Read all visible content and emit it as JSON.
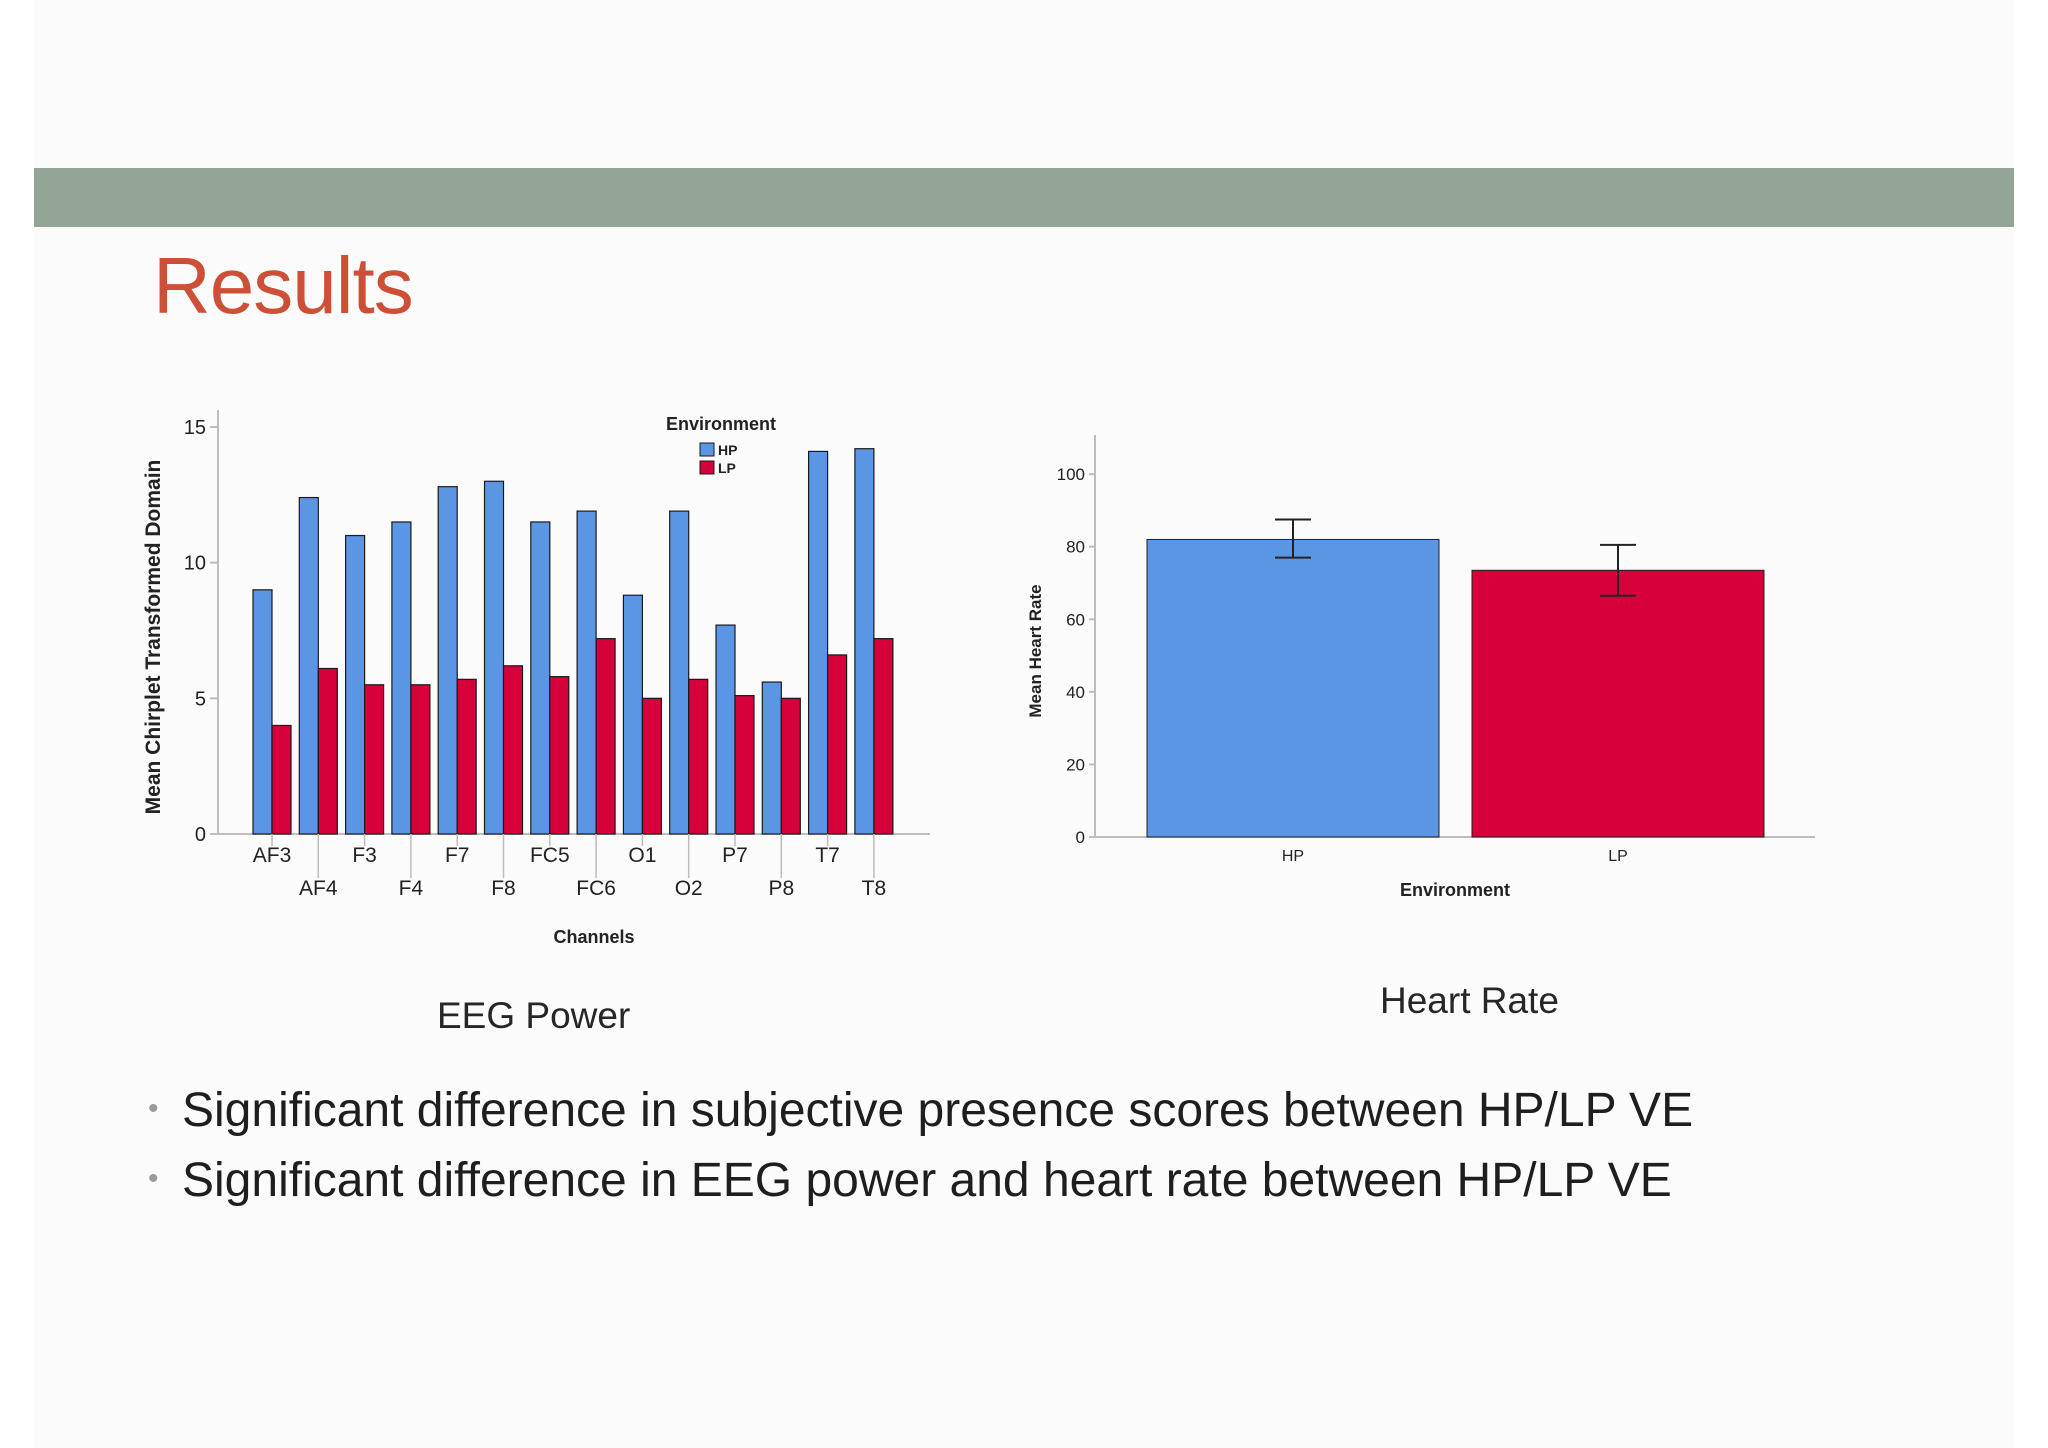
{
  "slide": {
    "title": "Results",
    "captions": {
      "eeg": "EEG Power",
      "heart_rate": "Heart Rate"
    },
    "bullets": [
      "Significant difference in subjective presence scores between HP/LP VE",
      "Significant difference in EEG power and heart rate between HP/LP VE"
    ],
    "colors": {
      "header_bar": "#93a597",
      "title": "#cd5036",
      "hp": "#5b96e4",
      "lp": "#d6003a"
    }
  },
  "chart_data": [
    {
      "type": "bar",
      "title": "",
      "xlabel": "Channels",
      "ylabel": "Mean Chirplet Transformed Domain",
      "ylim": [
        0,
        15
      ],
      "yticks": [
        0,
        5,
        10,
        15
      ],
      "legend": {
        "title": "Environment",
        "placement": "top-right"
      },
      "categories": [
        "AF3",
        "AF4",
        "F3",
        "F4",
        "F7",
        "F8",
        "FC5",
        "FC6",
        "O1",
        "O2",
        "P7",
        "P8",
        "T7",
        "T8"
      ],
      "series": [
        {
          "name": "HP",
          "color": "#5b96e4",
          "values": [
            9.0,
            12.4,
            11.0,
            11.5,
            12.8,
            13.0,
            11.5,
            11.9,
            8.8,
            11.9,
            7.7,
            5.6,
            14.1,
            14.2
          ]
        },
        {
          "name": "LP",
          "color": "#d6003a",
          "values": [
            4.0,
            6.1,
            5.5,
            5.5,
            5.7,
            6.2,
            5.8,
            7.2,
            5.0,
            5.7,
            5.1,
            5.0,
            6.6,
            7.2
          ]
        }
      ]
    },
    {
      "type": "bar",
      "title": "",
      "xlabel": "Environment",
      "ylabel": "Mean Heart Rate",
      "ylim": [
        0,
        105
      ],
      "yticks": [
        0,
        20,
        40,
        60,
        80,
        100
      ],
      "categories": [
        "HP",
        "LP"
      ],
      "values": [
        82,
        73.5
      ],
      "colors": [
        "#5b96e4",
        "#d6003a"
      ],
      "error_bars": [
        [
          77,
          87.5
        ],
        [
          66.5,
          80.5
        ]
      ]
    }
  ]
}
